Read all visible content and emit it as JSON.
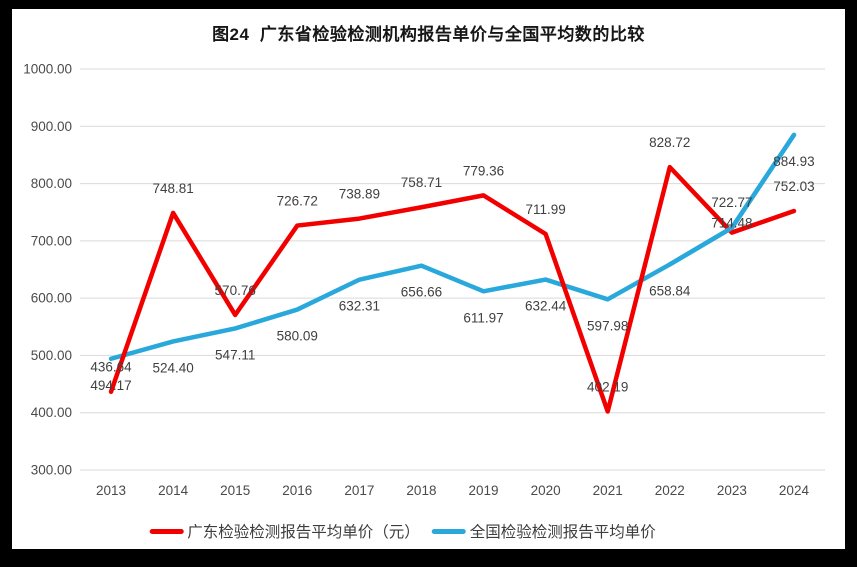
{
  "window": {
    "frame_color": "#000000",
    "panel_background": "#ffffff"
  },
  "chart_data": {
    "type": "line",
    "title": "图24  广东省检验检测机构报告单价与全国平均数的比较",
    "categories": [
      "2013",
      "2014",
      "2015",
      "2016",
      "2017",
      "2018",
      "2019",
      "2020",
      "2021",
      "2022",
      "2023",
      "2024"
    ],
    "series": [
      {
        "name": "广东检验检测报告平均单价（元）",
        "color": "#f20000",
        "values": [
          436.64,
          748.81,
          570.76,
          726.72,
          738.89,
          758.71,
          779.36,
          711.99,
          402.19,
          828.72,
          714.48,
          752.03
        ],
        "labels": [
          "436.64",
          "748.81",
          "570.76",
          "726.72",
          "738.89",
          "758.71",
          "779.36",
          "711.99",
          "402.19",
          "828.72",
          "714.48",
          "752.03"
        ]
      },
      {
        "name": "全国检验检测报告平均单价",
        "color": "#29a8dc",
        "values": [
          494.17,
          524.4,
          547.11,
          580.09,
          632.31,
          656.66,
          611.97,
          632.44,
          597.98,
          658.84,
          722.77,
          884.93
        ],
        "labels": [
          "494.17",
          "524.40",
          "547.11",
          "580.09",
          "632.31",
          "656.66",
          "611.97",
          "632.44",
          "597.98",
          "658.84",
          "722.77",
          "884.93"
        ]
      }
    ],
    "ylim": [
      300,
      1000
    ],
    "ytick_step": 100,
    "yticks": [
      "1000.00",
      "900.00",
      "800.00",
      "700.00",
      "600.00",
      "500.00",
      "400.00",
      "300.00"
    ],
    "xlabel": "",
    "ylabel": "",
    "grid": "horizontal",
    "gridline_color": "#d9d9d9",
    "axis_text_color": "#4a4a4a",
    "label_text_color": "#404040",
    "legend_position": "bottom"
  }
}
